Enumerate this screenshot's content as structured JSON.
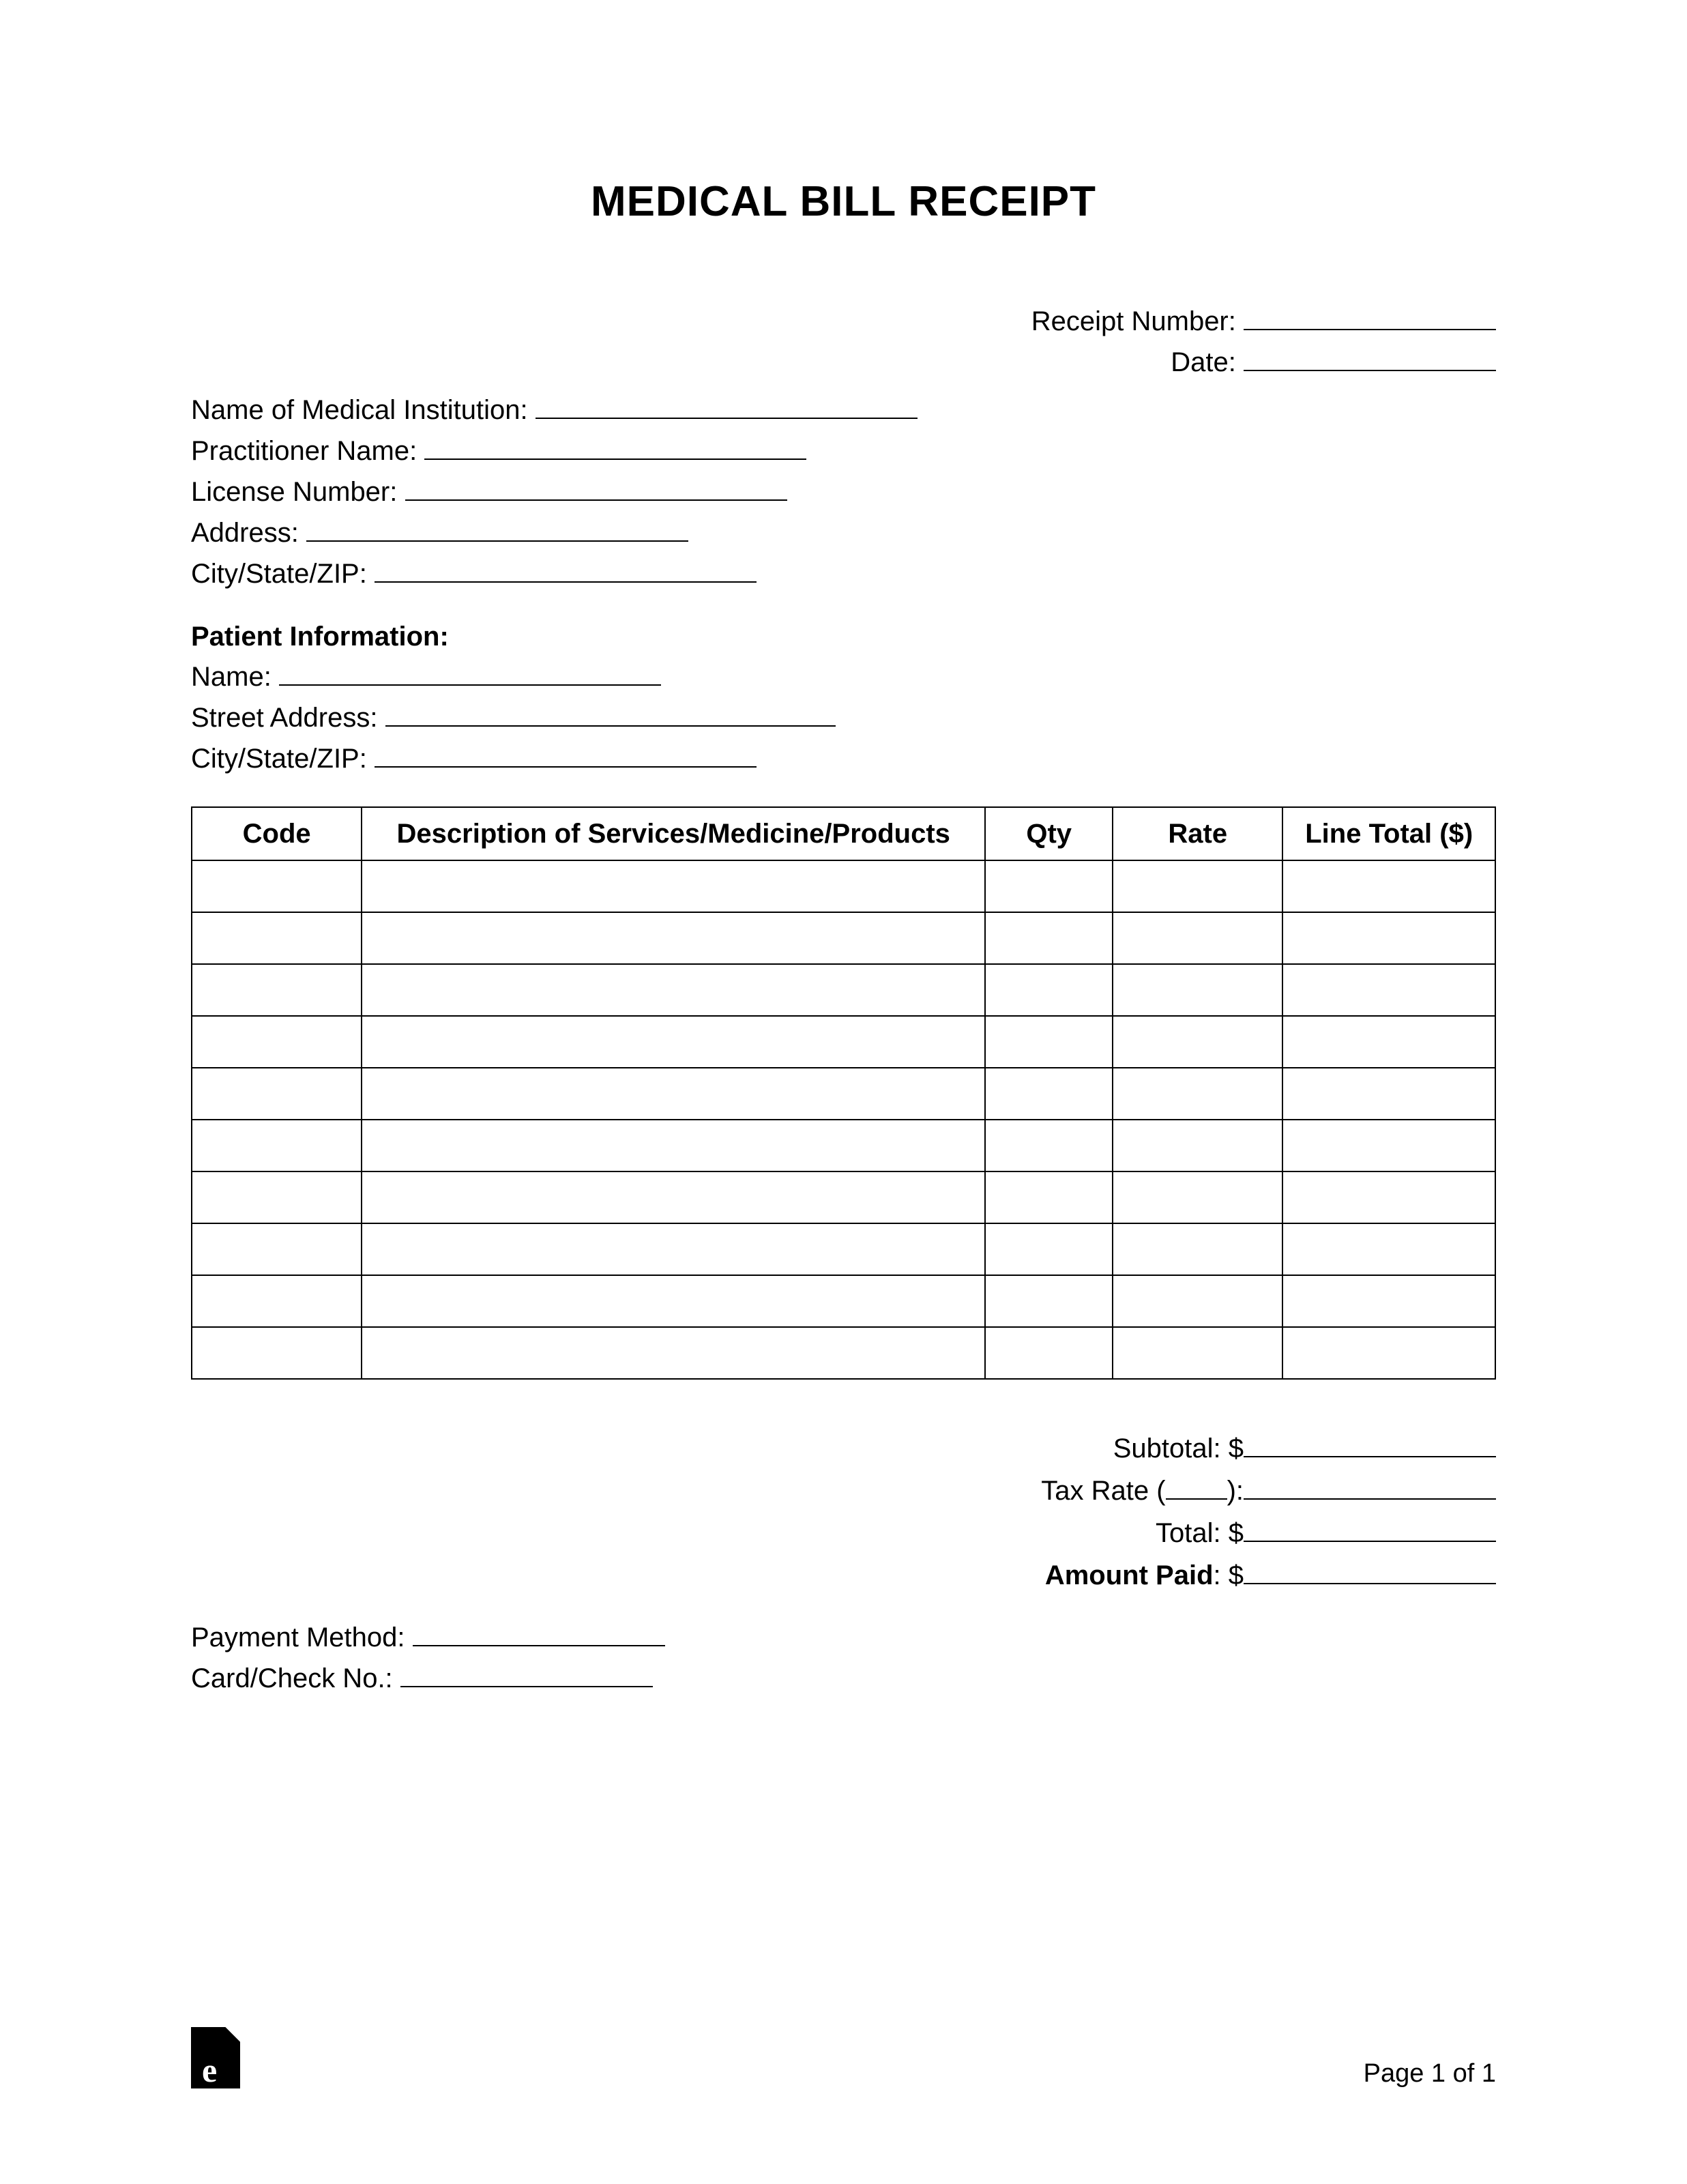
{
  "title": "MEDICAL BILL RECEIPT",
  "topRight": {
    "receiptNumberLabel": "Receipt Number:",
    "dateLabel": "Date:"
  },
  "institution": {
    "nameLabel": "Name of Medical Institution:",
    "practitionerLabel": "Practitioner Name:",
    "licenseLabel": "License Number:",
    "addressLabel": "Address:",
    "cityStateZipLabel": "City/State/ZIP:"
  },
  "patient": {
    "header": "Patient Information:",
    "nameLabel": "Name:",
    "streetLabel": "Street Address:",
    "cityStateZipLabel": "City/State/ZIP:"
  },
  "table": {
    "columns": [
      "Code",
      "Description of Services/Medicine/Products",
      "Qty",
      "Rate",
      "Line Total ($)"
    ],
    "rowCount": 10,
    "columnWidthsPct": [
      12,
      44,
      9,
      12,
      15
    ],
    "borderColor": "#000000",
    "borderWidth": 2,
    "headerFontWeight": "bold",
    "cellHeightPx": 76,
    "fontSize": 40
  },
  "totals": {
    "subtotalLabel": "Subtotal: $",
    "taxRateLabel1": "Tax Rate (",
    "taxRateLabel2": "):",
    "totalLabel": "Total: $",
    "amountPaidLabel": "Amount Paid",
    "amountPaidSuffix": ": $"
  },
  "payment": {
    "methodLabel": "Payment Method:",
    "cardLabel": "Card/Check No.:"
  },
  "footer": {
    "pageText": "Page 1 of 1",
    "logoLetter": "e"
  },
  "styling": {
    "pageWidth": 2473,
    "pageHeight": 3201,
    "background": "#ffffff",
    "textColor": "#000000",
    "titleFontSize": 62,
    "bodyFontSize": 40,
    "footerFontSize": 38,
    "fontFamily": "Arial, Helvetica, sans-serif",
    "underlineColor": "#000000",
    "underlineThickness": 2
  }
}
